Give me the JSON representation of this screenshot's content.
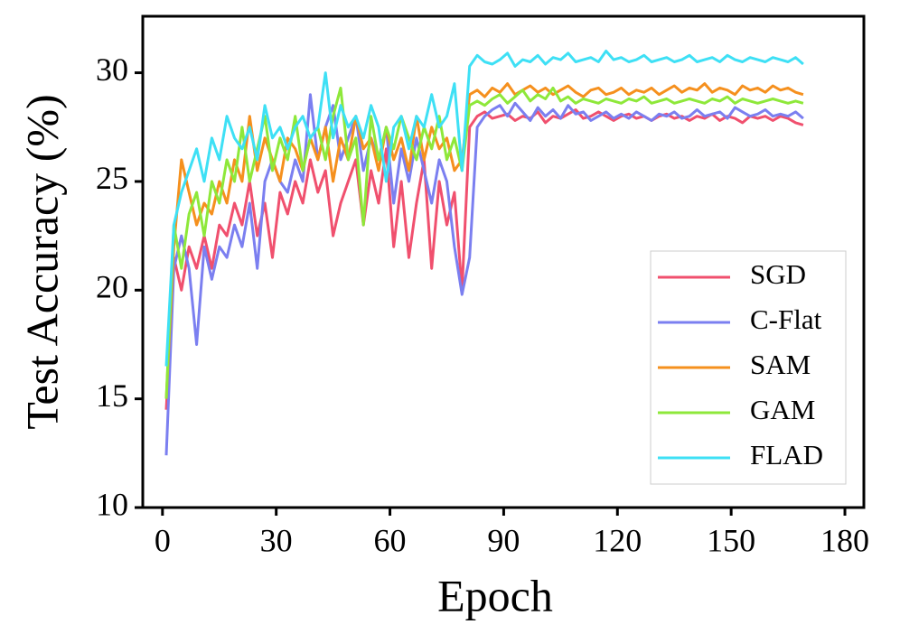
{
  "chart_data": {
    "type": "line",
    "x_label": "Epoch",
    "y_label": "Test Accuracy (%)",
    "xlim": [
      -5.2,
      185
    ],
    "ylim": [
      10,
      32.6
    ],
    "xticks": [
      0,
      30,
      60,
      90,
      120,
      150,
      180
    ],
    "yticks": [
      10,
      15,
      20,
      25,
      30
    ],
    "legend": "lower right",
    "x": [
      1,
      3,
      5,
      7,
      9,
      11,
      13,
      15,
      17,
      19,
      21,
      23,
      25,
      27,
      29,
      31,
      33,
      35,
      37,
      39,
      41,
      43,
      45,
      47,
      49,
      51,
      53,
      55,
      57,
      59,
      61,
      63,
      65,
      67,
      69,
      71,
      73,
      75,
      77,
      79,
      81,
      83,
      85,
      87,
      89,
      91,
      93,
      95,
      97,
      99,
      101,
      103,
      105,
      107,
      109,
      111,
      113,
      115,
      117,
      119,
      121,
      123,
      125,
      127,
      129,
      131,
      133,
      135,
      137,
      139,
      141,
      143,
      145,
      147,
      149,
      151,
      153,
      155,
      157,
      159,
      161,
      163,
      165,
      167,
      169
    ],
    "series": [
      {
        "name": "SGD",
        "color": "#f0506e",
        "values": [
          14.5,
          21.5,
          20,
          22,
          21,
          22.5,
          21,
          23,
          22.5,
          24,
          23,
          25,
          22.5,
          24,
          21.5,
          24.5,
          23.5,
          25,
          24,
          26,
          24.5,
          25.5,
          22.5,
          24,
          25,
          26,
          23,
          25.5,
          24,
          26.5,
          22,
          25,
          21.5,
          24,
          26,
          21,
          25,
          23,
          24.5,
          20,
          27.5,
          28,
          28.2,
          27.9,
          28,
          28.1,
          27.8,
          28,
          27.9,
          28.2,
          27.7,
          28,
          27.9,
          28.1,
          28.3,
          27.9,
          28,
          28.2,
          28,
          27.8,
          28,
          28.1,
          27.9,
          28,
          27.8,
          28,
          28.1,
          27.9,
          28,
          27.8,
          28,
          27.9,
          28.1,
          27.8,
          28,
          27.9,
          27.7,
          28,
          27.9,
          28,
          27.8,
          28,
          27.9,
          27.7,
          27.6
        ]
      },
      {
        "name": "C-Flat",
        "color": "#7b7ff0",
        "values": [
          12.4,
          21,
          22.5,
          21,
          17.5,
          22,
          20.5,
          22,
          21.5,
          23,
          22,
          24,
          21,
          25,
          26,
          25,
          24.5,
          26,
          25,
          29,
          26,
          27.5,
          28.5,
          26,
          27,
          28,
          25.5,
          27,
          26,
          27.5,
          24,
          26.5,
          25,
          27,
          25.5,
          24,
          26,
          25,
          22,
          19.8,
          21.5,
          27.5,
          28,
          28.3,
          28.5,
          28,
          28.6,
          28.2,
          27.8,
          28.4,
          28,
          28.3,
          27.9,
          28.5,
          28.1,
          28.2,
          27.8,
          28,
          28.2,
          27.9,
          28.1,
          27.9,
          28.2,
          28,
          27.8,
          28.1,
          28,
          28.2,
          27.9,
          28,
          28.3,
          28,
          28.1,
          28.2,
          27.9,
          28.4,
          28.2,
          28,
          28.1,
          28.3,
          28,
          28.1,
          28,
          28.2,
          27.9
        ]
      },
      {
        "name": "SAM",
        "color": "#f5901e",
        "values": [
          15,
          22,
          26,
          24.5,
          23,
          24,
          23.5,
          25,
          24,
          26,
          25,
          28,
          25.5,
          27,
          26,
          25,
          27,
          26.5,
          25.5,
          27,
          26,
          27.5,
          25,
          27,
          26,
          28,
          26.5,
          27,
          25.5,
          27.5,
          26,
          27,
          25.5,
          28,
          26,
          27.5,
          26.5,
          27,
          25.5,
          26,
          29,
          29.2,
          28.9,
          29.3,
          29.1,
          29.5,
          29,
          29.2,
          29.4,
          29.1,
          29.3,
          29,
          29.2,
          29.4,
          29.1,
          28.9,
          29.2,
          29.3,
          29,
          29.1,
          29.3,
          29,
          29.2,
          29.1,
          29.3,
          29,
          29.2,
          29.4,
          29.1,
          29.3,
          29.2,
          29.5,
          29.1,
          29.3,
          29.2,
          29,
          29.4,
          29.2,
          29.3,
          29.1,
          29.4,
          29.2,
          29.3,
          29.1,
          29.0
        ]
      },
      {
        "name": "GAM",
        "color": "#8ee83a",
        "values": [
          15,
          23,
          21,
          23.5,
          24.5,
          22.5,
          25,
          24,
          26,
          25,
          27.5,
          25,
          26.5,
          28,
          25.5,
          27,
          26,
          28,
          25.5,
          27,
          27.5,
          26,
          28,
          29.3,
          26,
          27,
          23,
          28,
          26,
          27.5,
          26.5,
          28,
          27,
          26,
          27.5,
          26.5,
          28,
          26,
          27,
          25.5,
          28.5,
          28.7,
          28.5,
          28.8,
          29,
          28.6,
          28.9,
          29.2,
          28.7,
          29,
          28.8,
          29.3,
          28.7,
          28.9,
          28.6,
          28.8,
          28.7,
          28.6,
          28.8,
          28.7,
          28.6,
          28.8,
          28.7,
          28.9,
          28.6,
          28.7,
          28.8,
          28.6,
          28.7,
          28.8,
          28.7,
          28.6,
          28.8,
          28.7,
          28.9,
          28.6,
          28.8,
          28.7,
          28.6,
          28.7,
          28.8,
          28.7,
          28.6,
          28.7,
          28.6
        ]
      },
      {
        "name": "FLAD",
        "color": "#3ee0f5",
        "values": [
          16.5,
          23,
          24.5,
          25.5,
          26.5,
          25,
          27,
          26,
          28,
          27,
          26.5,
          27.5,
          26,
          28.5,
          27,
          27.5,
          26.5,
          27.5,
          28,
          27,
          27.5,
          30,
          27,
          28.5,
          27.5,
          28,
          27,
          28.5,
          27.5,
          25,
          27.5,
          28,
          26.5,
          28,
          27.5,
          29,
          27.5,
          28,
          29.5,
          25.5,
          30.3,
          30.8,
          30.5,
          30.4,
          30.6,
          30.9,
          30.3,
          30.6,
          30.5,
          30.8,
          30.4,
          30.7,
          30.6,
          30.9,
          30.5,
          30.6,
          30.7,
          30.5,
          31,
          30.6,
          30.7,
          30.5,
          30.6,
          30.8,
          30.5,
          30.6,
          30.7,
          30.5,
          30.6,
          30.8,
          30.5,
          30.6,
          30.7,
          30.5,
          30.8,
          30.6,
          30.5,
          30.7,
          30.6,
          30.5,
          30.7,
          30.6,
          30.5,
          30.7,
          30.4
        ]
      }
    ]
  }
}
